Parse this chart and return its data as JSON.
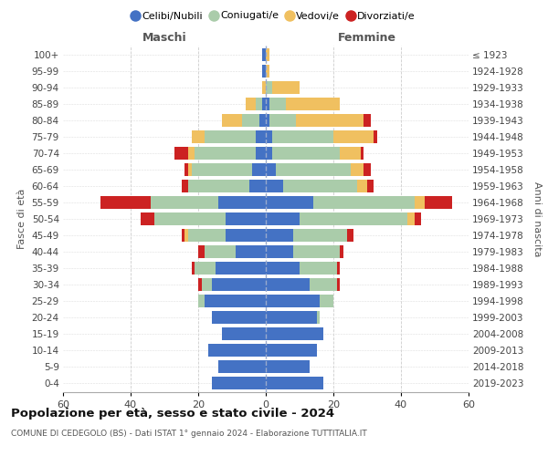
{
  "age_groups": [
    "0-4",
    "5-9",
    "10-14",
    "15-19",
    "20-24",
    "25-29",
    "30-34",
    "35-39",
    "40-44",
    "45-49",
    "50-54",
    "55-59",
    "60-64",
    "65-69",
    "70-74",
    "75-79",
    "80-84",
    "85-89",
    "90-94",
    "95-99",
    "100+"
  ],
  "birth_years": [
    "2019-2023",
    "2014-2018",
    "2009-2013",
    "2004-2008",
    "1999-2003",
    "1994-1998",
    "1989-1993",
    "1984-1988",
    "1979-1983",
    "1974-1978",
    "1969-1973",
    "1964-1968",
    "1959-1963",
    "1954-1958",
    "1949-1953",
    "1944-1948",
    "1939-1943",
    "1934-1938",
    "1929-1933",
    "1924-1928",
    "≤ 1923"
  ],
  "colors": {
    "celibe": "#4472C4",
    "coniugato": "#AACCAA",
    "vedovo": "#F0C060",
    "divorziato": "#CC2222"
  },
  "legend_labels": [
    "Celibi/Nubili",
    "Coniugati/e",
    "Vedovi/e",
    "Divorziati/e"
  ],
  "legend_colors": [
    "#4472C4",
    "#AACCAA",
    "#F0C060",
    "#CC2222"
  ],
  "maschi": {
    "celibe": [
      16,
      14,
      17,
      13,
      16,
      18,
      16,
      15,
      9,
      12,
      12,
      14,
      5,
      4,
      3,
      3,
      2,
      1,
      0,
      1,
      1
    ],
    "coniugato": [
      0,
      0,
      0,
      0,
      0,
      2,
      3,
      6,
      9,
      11,
      21,
      20,
      18,
      18,
      18,
      15,
      5,
      2,
      0,
      0,
      0
    ],
    "vedovo": [
      0,
      0,
      0,
      0,
      0,
      0,
      0,
      0,
      0,
      1,
      0,
      0,
      0,
      1,
      2,
      4,
      6,
      3,
      1,
      0,
      0
    ],
    "divorziato": [
      0,
      0,
      0,
      0,
      0,
      0,
      1,
      1,
      2,
      1,
      4,
      15,
      2,
      1,
      4,
      0,
      0,
      0,
      0,
      0,
      0
    ]
  },
  "femmine": {
    "celibe": [
      17,
      13,
      15,
      17,
      15,
      16,
      13,
      10,
      8,
      8,
      10,
      14,
      5,
      3,
      2,
      2,
      1,
      1,
      0,
      0,
      0
    ],
    "coniugato": [
      0,
      0,
      0,
      0,
      1,
      4,
      8,
      11,
      14,
      16,
      32,
      30,
      22,
      22,
      20,
      18,
      8,
      5,
      2,
      0,
      0
    ],
    "vedovo": [
      0,
      0,
      0,
      0,
      0,
      0,
      0,
      0,
      0,
      0,
      2,
      3,
      3,
      4,
      6,
      12,
      20,
      16,
      8,
      1,
      1
    ],
    "divorziato": [
      0,
      0,
      0,
      0,
      0,
      0,
      1,
      1,
      1,
      2,
      2,
      8,
      2,
      2,
      1,
      1,
      2,
      0,
      0,
      0,
      0
    ]
  },
  "title": "Popolazione per età, sesso e stato civile - 2024",
  "subtitle": "COMUNE DI CEDEGOLO (BS) - Dati ISTAT 1° gennaio 2024 - Elaborazione TUTTITALIA.IT",
  "label_maschi": "Maschi",
  "label_femmine": "Femmine",
  "ylabel_left": "Fasce di età",
  "ylabel_right": "Anni di nascita",
  "xlim": 60,
  "bg_color": "#FFFFFF",
  "grid_color": "#CCCCCC"
}
